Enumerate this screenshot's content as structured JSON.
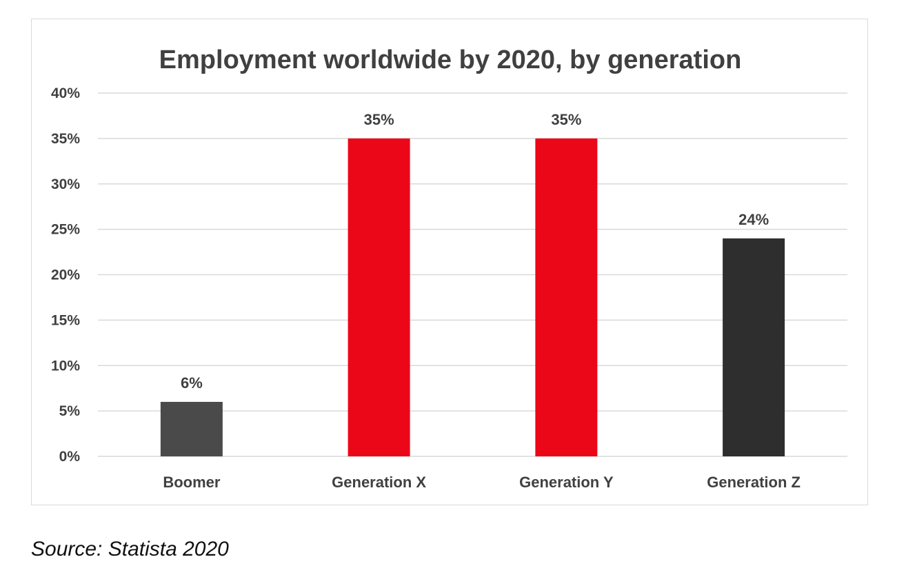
{
  "chart_data": {
    "type": "bar",
    "title": "Employment worldwide by 2020, by generation",
    "categories": [
      "Boomer",
      "Generation X",
      "Generation Y",
      "Generation Z"
    ],
    "values": [
      6,
      35,
      35,
      24
    ],
    "data_labels": [
      "6%",
      "35%",
      "35%",
      "24%"
    ],
    "bar_colors": [
      "#4a4a4a",
      "#ec0718",
      "#ec0718",
      "#2e2e2e"
    ],
    "y_ticks": [
      "0%",
      "5%",
      "10%",
      "15%",
      "20%",
      "25%",
      "30%",
      "35%",
      "40%"
    ],
    "ylim": [
      0,
      40
    ],
    "y_unit": "%",
    "grid": true,
    "legend": "none",
    "xlabel": "",
    "ylabel": ""
  },
  "source": "Source: Statista 2020",
  "colors": {
    "grid": "#d9d9d9",
    "axis_text": "#404040",
    "frame_border": "#d9d9d9"
  }
}
